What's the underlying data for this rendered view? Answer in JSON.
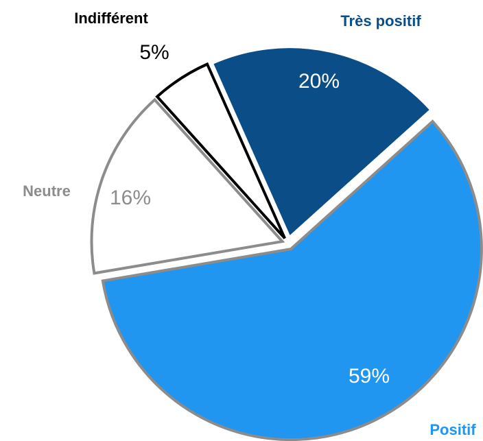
{
  "chart_data": {
    "type": "pie",
    "categories": [
      "Très positif",
      "Positif",
      "Neutre",
      "Indifférent"
    ],
    "values": [
      20,
      59,
      16,
      5
    ],
    "value_labels": [
      "20%",
      "59%",
      "16%",
      "5%"
    ],
    "colors": [
      "#0b4d86",
      "#2196f0",
      "#ffffff",
      "#ffffff"
    ],
    "edge_colors": [
      "#ffffff",
      "#8c8c8c",
      "#8c8c8c",
      "#000000"
    ],
    "label_colors": [
      "#0b4d86",
      "#2196f0",
      "#8c8c8c",
      "#000000"
    ],
    "value_label_colors": [
      "#ffffff",
      "#ffffff",
      "#8c8c8c",
      "#000000"
    ]
  }
}
